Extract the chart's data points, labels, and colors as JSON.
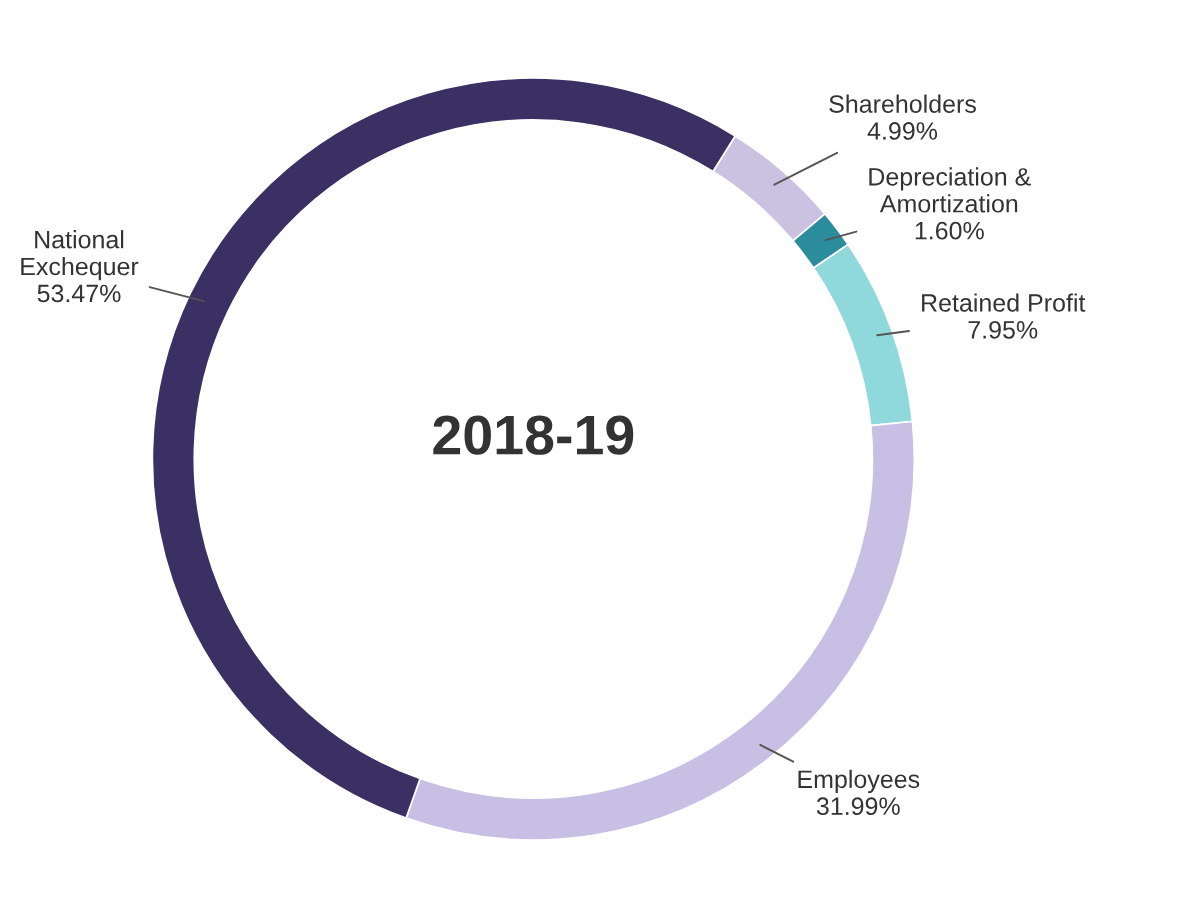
{
  "chart_data": {
    "type": "donut",
    "title": "2018-19",
    "categories": [
      "Shareholders",
      "Depreciation &\nAmortization",
      "Retained Profit",
      "Employees",
      "National\nExchequer"
    ],
    "values": [
      4.99,
      1.6,
      7.95,
      31.99,
      53.47
    ],
    "value_labels": [
      "4.99%",
      "1.60%",
      "7.95%",
      "31.99%",
      "53.47%"
    ],
    "colors": [
      "#cbc2e2",
      "#2b8c9c",
      "#8fd9dd",
      "#c8bfe4",
      "#3a3064"
    ],
    "legend": false
  }
}
